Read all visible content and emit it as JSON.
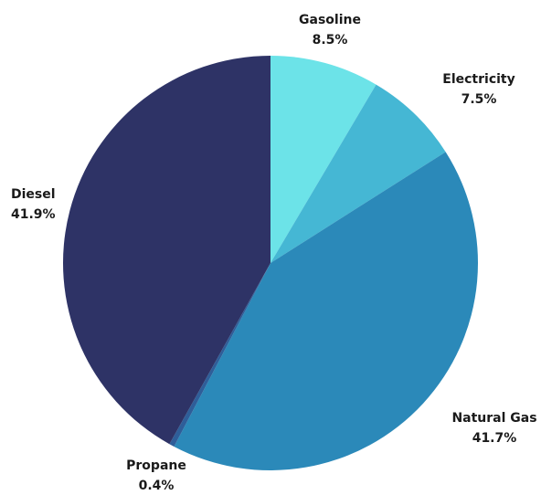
{
  "chart_data": {
    "type": "pie",
    "title": "",
    "start_angle_deg": 0,
    "direction": "clockwise",
    "slices": [
      {
        "label": "Gasoline",
        "value": 8.5,
        "value_text": "8.5%",
        "color": "#6CE3E8"
      },
      {
        "label": "Electricity",
        "value": 7.5,
        "value_text": "7.5%",
        "color": "#45B7D4"
      },
      {
        "label": "Natural Gas",
        "value": 41.7,
        "value_text": "41.7%",
        "color": "#2B89B9"
      },
      {
        "label": "Propane",
        "value": 0.4,
        "value_text": "0.4%",
        "color": "#2E5E99"
      },
      {
        "label": "Diesel",
        "value": 41.9,
        "value_text": "41.9%",
        "color": "#2E3366"
      }
    ],
    "legend": "none",
    "label_placement": "outside"
  }
}
